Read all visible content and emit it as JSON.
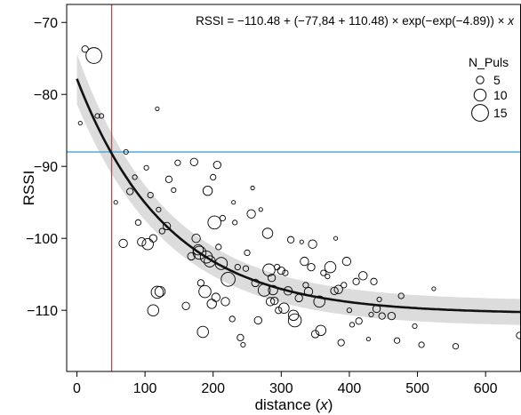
{
  "chart_data": {
    "type": "scatter",
    "formula_prefix": "RSSI = −110.48 + (−77,84 + 110.48) × exp(−exp(−4.89)) × ",
    "formula_var": "x",
    "xlabel": "distance (",
    "xlabel_var": "x",
    "xlabel_suffix": ")",
    "ylabel": "RSSI",
    "xlim": [
      -15,
      652
    ],
    "ylim": [
      -118.5,
      -67.5
    ],
    "xticks": [
      0,
      100,
      200,
      300,
      400,
      500,
      600
    ],
    "yticks": [
      -70,
      -80,
      -90,
      -100,
      -110
    ],
    "ytick_labels": [
      "−70",
      "−80",
      "−90",
      "−100",
      "−110"
    ],
    "vline_x": 51,
    "hline_y": -88,
    "colors": {
      "vline": "#e8333a",
      "hline": "#2f9bd6",
      "fit": "#111111",
      "band": "#dcdcdc"
    },
    "fit": {
      "asymptote": -110.48,
      "start": -77.84,
      "rate": 0.0075
    },
    "band_halfwidth": {
      "near": 3.5,
      "far": 1.8,
      "decay": 0.01
    },
    "legend": {
      "title": "N_Puls",
      "placement": "top-right",
      "entries": [
        {
          "label": "5",
          "size": 5
        },
        {
          "label": "10",
          "size": 10
        },
        {
          "label": "15",
          "size": 15
        }
      ]
    },
    "points": [
      {
        "x": 5,
        "y": -84,
        "n": 1
      },
      {
        "x": 12,
        "y": -73.7,
        "n": 4
      },
      {
        "x": 25,
        "y": -74.6,
        "n": 14
      },
      {
        "x": 30,
        "y": -83,
        "n": 2
      },
      {
        "x": 36,
        "y": -83,
        "n": 2
      },
      {
        "x": 57,
        "y": -95,
        "n": 1
      },
      {
        "x": 68,
        "y": -100.7,
        "n": 6
      },
      {
        "x": 72,
        "y": -88,
        "n": 2
      },
      {
        "x": 78,
        "y": -93.5,
        "n": 4
      },
      {
        "x": 85,
        "y": -91.5,
        "n": 2
      },
      {
        "x": 90,
        "y": -97.8,
        "n": 3
      },
      {
        "x": 95,
        "y": -100.5,
        "n": 6
      },
      {
        "x": 102,
        "y": -90.2,
        "n": 2
      },
      {
        "x": 104,
        "y": -100.8,
        "n": 9
      },
      {
        "x": 108,
        "y": -94,
        "n": 3
      },
      {
        "x": 112,
        "y": -100,
        "n": 5
      },
      {
        "x": 112,
        "y": -110,
        "n": 9
      },
      {
        "x": 118,
        "y": -107.5,
        "n": 10
      },
      {
        "x": 122,
        "y": -107.4,
        "n": 8
      },
      {
        "x": 118,
        "y": -82,
        "n": 1
      },
      {
        "x": 120,
        "y": -96,
        "n": 2
      },
      {
        "x": 125,
        "y": -99,
        "n": 3
      },
      {
        "x": 132,
        "y": -98.3,
        "n": 5
      },
      {
        "x": 135,
        "y": -91.8,
        "n": 4
      },
      {
        "x": 142,
        "y": -93.3,
        "n": 2
      },
      {
        "x": 148,
        "y": -89.5,
        "n": 3
      },
      {
        "x": 160,
        "y": -109.4,
        "n": 5
      },
      {
        "x": 168,
        "y": -102.5,
        "n": 5
      },
      {
        "x": 172,
        "y": -89.4,
        "n": 5
      },
      {
        "x": 175,
        "y": -100,
        "n": 6
      },
      {
        "x": 178,
        "y": -101.6,
        "n": 8
      },
      {
        "x": 180,
        "y": -102,
        "n": 11
      },
      {
        "x": 182,
        "y": -106.2,
        "n": 4
      },
      {
        "x": 185,
        "y": -113,
        "n": 9
      },
      {
        "x": 188,
        "y": -107.4,
        "n": 10
      },
      {
        "x": 190,
        "y": -102.6,
        "n": 10
      },
      {
        "x": 192,
        "y": -93.4,
        "n": 7
      },
      {
        "x": 195,
        "y": -103.2,
        "n": 9
      },
      {
        "x": 198,
        "y": -109.1,
        "n": 7
      },
      {
        "x": 200,
        "y": -91.5,
        "n": 3
      },
      {
        "x": 202,
        "y": -97.8,
        "n": 11
      },
      {
        "x": 204,
        "y": -108.2,
        "n": 6
      },
      {
        "x": 206,
        "y": -89.8,
        "n": 5
      },
      {
        "x": 208,
        "y": -101.2,
        "n": 3
      },
      {
        "x": 212,
        "y": -103.5,
        "n": 10
      },
      {
        "x": 214,
        "y": -97.2,
        "n": 3
      },
      {
        "x": 218,
        "y": -108.8,
        "n": 6
      },
      {
        "x": 222,
        "y": -105.7,
        "n": 12
      },
      {
        "x": 228,
        "y": -111.2,
        "n": 3
      },
      {
        "x": 230,
        "y": -95,
        "n": 1
      },
      {
        "x": 232,
        "y": -97.8,
        "n": 2
      },
      {
        "x": 236,
        "y": -104,
        "n": 3
      },
      {
        "x": 240,
        "y": -113.8,
        "n": 4
      },
      {
        "x": 244,
        "y": -114.8,
        "n": 2
      },
      {
        "x": 248,
        "y": -104.2,
        "n": 3
      },
      {
        "x": 250,
        "y": -102,
        "n": 3
      },
      {
        "x": 256,
        "y": -96.6,
        "n": 6
      },
      {
        "x": 258,
        "y": -93,
        "n": 1
      },
      {
        "x": 262,
        "y": -106.2,
        "n": 5
      },
      {
        "x": 266,
        "y": -111.4,
        "n": 5
      },
      {
        "x": 270,
        "y": -96,
        "n": 1
      },
      {
        "x": 275,
        "y": -107.2,
        "n": 10
      },
      {
        "x": 280,
        "y": -99.3,
        "n": 8
      },
      {
        "x": 282,
        "y": -104.4,
        "n": 10
      },
      {
        "x": 284,
        "y": -108.8,
        "n": 6
      },
      {
        "x": 286,
        "y": -105.5,
        "n": 5
      },
      {
        "x": 288,
        "y": -107.2,
        "n": 7
      },
      {
        "x": 290,
        "y": -108.7,
        "n": 5
      },
      {
        "x": 294,
        "y": -104,
        "n": 3
      },
      {
        "x": 296,
        "y": -110,
        "n": 4
      },
      {
        "x": 300,
        "y": -104.5,
        "n": 5
      },
      {
        "x": 304,
        "y": -109.7,
        "n": 8
      },
      {
        "x": 306,
        "y": -104.8,
        "n": 3
      },
      {
        "x": 310,
        "y": -107.3,
        "n": 6
      },
      {
        "x": 314,
        "y": -100.2,
        "n": 4
      },
      {
        "x": 318,
        "y": -110.7,
        "n": 8
      },
      {
        "x": 320,
        "y": -111.4,
        "n": 11
      },
      {
        "x": 326,
        "y": -108.3,
        "n": 5
      },
      {
        "x": 330,
        "y": -100.5,
        "n": 1
      },
      {
        "x": 334,
        "y": -103.2,
        "n": 6
      },
      {
        "x": 336,
        "y": -106.5,
        "n": 3
      },
      {
        "x": 340,
        "y": -107.4,
        "n": 6
      },
      {
        "x": 344,
        "y": -104,
        "n": 5
      },
      {
        "x": 346,
        "y": -100.8,
        "n": 6
      },
      {
        "x": 350,
        "y": -113.3,
        "n": 5
      },
      {
        "x": 356,
        "y": -108.8,
        "n": 9
      },
      {
        "x": 358,
        "y": -112.8,
        "n": 8
      },
      {
        "x": 362,
        "y": -104.8,
        "n": 3
      },
      {
        "x": 368,
        "y": -105.3,
        "n": 2
      },
      {
        "x": 372,
        "y": -104,
        "n": 9
      },
      {
        "x": 378,
        "y": -107.3,
        "n": 5
      },
      {
        "x": 380,
        "y": -100,
        "n": 1
      },
      {
        "x": 384,
        "y": -107.1,
        "n": 6
      },
      {
        "x": 388,
        "y": -114.5,
        "n": 4
      },
      {
        "x": 392,
        "y": -106.5,
        "n": 3
      },
      {
        "x": 396,
        "y": -103.2,
        "n": 6
      },
      {
        "x": 400,
        "y": -110,
        "n": 2
      },
      {
        "x": 404,
        "y": -112,
        "n": 2
      },
      {
        "x": 410,
        "y": -106,
        "n": 4
      },
      {
        "x": 414,
        "y": -111.5,
        "n": 4
      },
      {
        "x": 420,
        "y": -105.2,
        "n": 6
      },
      {
        "x": 428,
        "y": -114,
        "n": 1
      },
      {
        "x": 432,
        "y": -110.6,
        "n": 2
      },
      {
        "x": 436,
        "y": -106,
        "n": 4
      },
      {
        "x": 440,
        "y": -109.8,
        "n": 5
      },
      {
        "x": 444,
        "y": -108.5,
        "n": 2
      },
      {
        "x": 448,
        "y": -110.8,
        "n": 4
      },
      {
        "x": 462,
        "y": -110.8,
        "n": 5
      },
      {
        "x": 470,
        "y": -114.2,
        "n": 3
      },
      {
        "x": 476,
        "y": -108,
        "n": 3
      },
      {
        "x": 496,
        "y": -112.2,
        "n": 2
      },
      {
        "x": 506,
        "y": -114.8,
        "n": 3
      },
      {
        "x": 524,
        "y": -107,
        "n": 1
      },
      {
        "x": 556,
        "y": -115,
        "n": 3
      },
      {
        "x": 650,
        "y": -113.5,
        "n": 4
      }
    ]
  }
}
